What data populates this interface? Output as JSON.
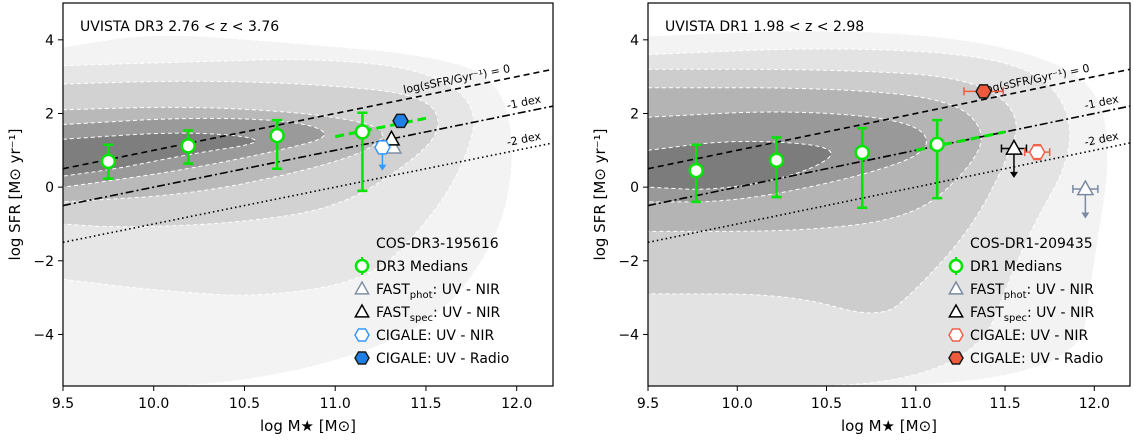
{
  "chart_data": [
    {
      "type": "scatter",
      "title": "UVISTA DR3 2.76 < z < 3.76",
      "xlabel": "log M★ [M⊙]",
      "ylabel": "log SFR [M⊙ yr⁻¹]",
      "xlim": [
        9.5,
        12.2
      ],
      "ylim": [
        -5.4,
        5.0
      ],
      "xticks": [
        "9.5",
        "10.0",
        "10.5",
        "11.0",
        "11.5",
        "12.0"
      ],
      "xtick_values": [
        9.5,
        10.0,
        10.5,
        11.0,
        11.5,
        12.0
      ],
      "yticks": [
        "−4",
        "−2",
        "0",
        "2",
        "4"
      ],
      "ytick_values": [
        -4,
        -2,
        0,
        2,
        4
      ],
      "grid": false,
      "legend_placement": "bottom-right",
      "background": "grayscale density contours with white dashed contour lines",
      "reference_lines": [
        {
          "label": "log(sSFR/Gyr⁻¹) = 0",
          "intercept_at_9": 0.0,
          "style": "dashed"
        },
        {
          "label": "-1 dex",
          "intercept_at_9": -1.0,
          "style": "dashdot"
        },
        {
          "label": "-2 dex",
          "intercept_at_9": -2.0,
          "style": "dotted"
        }
      ],
      "object_name": "COS-DR3-195616",
      "medians": {
        "name": "DR3 Medians",
        "color": "#00e600",
        "x": [
          9.75,
          10.19,
          10.68,
          11.15
        ],
        "y": [
          0.7,
          1.12,
          1.4,
          1.5
        ],
        "yerr_low": [
          0.47,
          0.48,
          0.9,
          1.6
        ],
        "yerr_high": [
          0.45,
          0.42,
          0.42,
          0.52
        ]
      },
      "median_fit_segment": {
        "x": [
          11.0,
          11.5
        ],
        "y": [
          1.37,
          1.87
        ],
        "color": "#00e600"
      },
      "points": [
        {
          "name": "FAST_phot: UV - NIR",
          "marker": "triangle-open",
          "color": "#8090a8",
          "x": 11.32,
          "y": 1.08,
          "upper_limit": false
        },
        {
          "name": "FAST_spec: UV - NIR",
          "marker": "triangle-open",
          "color": "#000000",
          "x": 11.31,
          "y": 1.3,
          "upper_limit": false
        },
        {
          "name": "CIGALE: UV - NIR",
          "marker": "hexagon-open",
          "color": "#3399ff",
          "x": 11.26,
          "y": 1.08,
          "upper_limit": true,
          "arrow_to": 0.45
        },
        {
          "name": "CIGALE: UV - Radio",
          "marker": "hexagon-filled",
          "color": "#1e7fe6",
          "x": 11.36,
          "y": 1.8,
          "upper_limit": false
        }
      ],
      "legend": [
        {
          "label": "COS-DR3-195616",
          "marker": "none"
        },
        {
          "label": "DR3 Medians",
          "marker": "circle-errorbar",
          "color": "#00e600"
        },
        {
          "label_main": "FAST",
          "label_sub": "phot",
          "label_rest": ": UV - NIR",
          "marker": "triangle-open",
          "color": "#8090a8"
        },
        {
          "label_main": "FAST",
          "label_sub": "spec",
          "label_rest": ": UV - NIR",
          "marker": "triangle-open",
          "color": "#000000"
        },
        {
          "label": "CIGALE: UV - NIR",
          "marker": "hexagon-open",
          "color": "#3399ff"
        },
        {
          "label": "CIGALE: UV - Radio",
          "marker": "hexagon-filled",
          "color": "#1e7fe6"
        }
      ]
    },
    {
      "type": "scatter",
      "title": "UVISTA DR1 1.98 < z < 2.98",
      "xlabel": "log M★ [M⊙]",
      "ylabel": "log SFR [M⊙ yr⁻¹]",
      "xlim": [
        9.5,
        12.2
      ],
      "ylim": [
        -5.4,
        5.0
      ],
      "xticks": [
        "9.5",
        "10.0",
        "10.5",
        "11.0",
        "11.5",
        "12.0"
      ],
      "xtick_values": [
        9.5,
        10.0,
        10.5,
        11.0,
        11.5,
        12.0
      ],
      "yticks": [
        "−4",
        "−2",
        "0",
        "2",
        "4"
      ],
      "ytick_values": [
        -4,
        -2,
        0,
        2,
        4
      ],
      "grid": false,
      "legend_placement": "bottom-right",
      "background": "grayscale density contours with white dashed contour lines",
      "reference_lines": [
        {
          "label": "log(sSFR/Gyr⁻¹) = 0",
          "intercept_at_9": 0.0,
          "style": "dashed"
        },
        {
          "label": "-1 dex",
          "intercept_at_9": -1.0,
          "style": "dashdot"
        },
        {
          "label": "-2 dex",
          "intercept_at_9": -2.0,
          "style": "dotted"
        }
      ],
      "object_name": "COS-DR1-209435",
      "medians": {
        "name": "DR1 Medians",
        "color": "#00e600",
        "x": [
          9.77,
          10.22,
          10.7,
          11.12
        ],
        "y": [
          0.45,
          0.73,
          0.94,
          1.16
        ],
        "yerr_low": [
          0.85,
          1.0,
          1.5,
          1.46
        ],
        "yerr_high": [
          0.7,
          0.62,
          0.66,
          0.66
        ]
      },
      "median_fit_segment": {
        "x": [
          11.0,
          11.5
        ],
        "y": [
          1.0,
          1.5
        ],
        "color": "#00e600"
      },
      "points": [
        {
          "name": "FAST_phot: UV - NIR",
          "marker": "triangle-open",
          "color": "#7a8aa0",
          "x": 11.95,
          "y": -0.05,
          "xerr": 0.07,
          "upper_limit": true,
          "arrow_to": -0.85
        },
        {
          "name": "FAST_spec: UV - NIR",
          "marker": "triangle-open",
          "color": "#000000",
          "x": 11.55,
          "y": 1.05,
          "xerr": 0.07,
          "upper_limit": true,
          "arrow_to": 0.25
        },
        {
          "name": "CIGALE: UV - NIR",
          "marker": "hexagon-open",
          "color": "#f0604a",
          "x": 11.68,
          "y": 0.95,
          "xerr": 0.07,
          "yerr": 0.2,
          "upper_limit": false
        },
        {
          "name": "CIGALE: UV - Radio",
          "marker": "hexagon-filled",
          "color": "#f05a3c",
          "x": 11.38,
          "y": 2.6,
          "xerr": 0.11,
          "upper_limit": false
        }
      ],
      "legend": [
        {
          "label": "COS-DR1-209435",
          "marker": "none"
        },
        {
          "label": "DR1 Medians",
          "marker": "circle-errorbar",
          "color": "#00e600"
        },
        {
          "label_main": "FAST",
          "label_sub": "phot",
          "label_rest": ": UV - NIR",
          "marker": "triangle-open",
          "color": "#7a8aa0"
        },
        {
          "label_main": "FAST",
          "label_sub": "spec",
          "label_rest": ": UV - NIR",
          "marker": "triangle-open",
          "color": "#000000"
        },
        {
          "label": "CIGALE: UV - NIR",
          "marker": "hexagon-open",
          "color": "#f0604a"
        },
        {
          "label": "CIGALE: UV - Radio",
          "marker": "hexagon-filled",
          "color": "#f05a3c"
        }
      ]
    }
  ]
}
